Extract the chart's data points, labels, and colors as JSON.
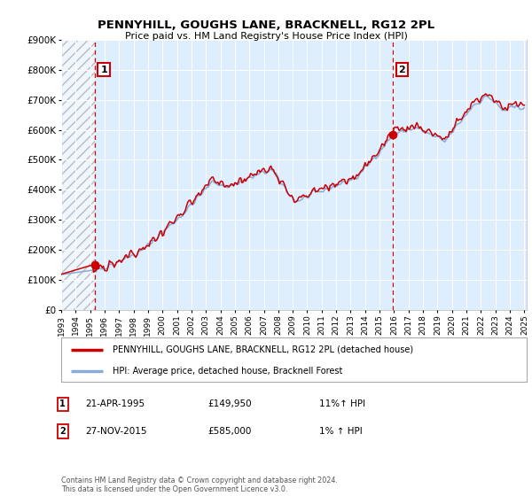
{
  "title": "PENNYHILL, GOUGHS LANE, BRACKNELL, RG12 2PL",
  "subtitle": "Price paid vs. HM Land Registry's House Price Index (HPI)",
  "ylim": [
    0,
    900000
  ],
  "yticks": [
    0,
    100000,
    200000,
    300000,
    400000,
    500000,
    600000,
    700000,
    800000,
    900000
  ],
  "ytick_labels": [
    "£0",
    "£100K",
    "£200K",
    "£300K",
    "£400K",
    "£500K",
    "£600K",
    "£700K",
    "£800K",
    "£900K"
  ],
  "line1_color": "#cc0000",
  "line2_color": "#88aadd",
  "plot_bg_color": "#ddeeff",
  "grid_color": "#ffffff",
  "point1_value": 149950,
  "point2_value": 585000,
  "legend_label1": "PENNYHILL, GOUGHS LANE, BRACKNELL, RG12 2PL (detached house)",
  "legend_label2": "HPI: Average price, detached house, Bracknell Forest",
  "footer": "Contains HM Land Registry data © Crown copyright and database right 2024.\nThis data is licensed under the Open Government Licence v3.0.",
  "xstart_year": 1993,
  "xend_year": 2025
}
